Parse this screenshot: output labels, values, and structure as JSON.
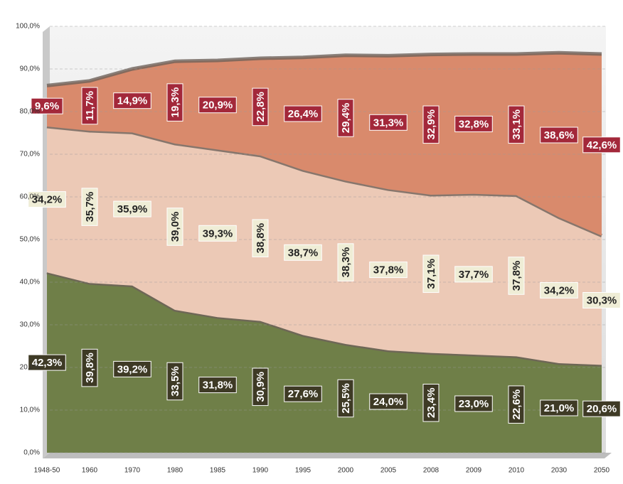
{
  "chart_data": {
    "type": "stacked-area",
    "categories": [
      "1948-50",
      "1960",
      "1970",
      "1980",
      "1985",
      "1990",
      "1995",
      "2000",
      "2005",
      "2008",
      "2009",
      "2010",
      "2030",
      "2050"
    ],
    "series": [
      {
        "color": "#6f7f48",
        "values": [
          42.3,
          39.8,
          39.2,
          33.5,
          31.8,
          30.9,
          27.6,
          25.5,
          24.0,
          23.4,
          23.0,
          22.6,
          21.0,
          20.6
        ],
        "value_labels": [
          "42,3%",
          "39,8%",
          "39,2%",
          "33,5%",
          "31,8%",
          "30,9%",
          "27,6%",
          "25,5%",
          "24,0%",
          "23,4%",
          "23,0%",
          "22,6%",
          "21,0%",
          "20,6%"
        ]
      },
      {
        "color": "#ecc9b6",
        "values": [
          34.2,
          35.7,
          35.9,
          39.0,
          39.3,
          38.8,
          38.7,
          38.3,
          37.8,
          37.1,
          37.7,
          37.8,
          34.2,
          30.3
        ],
        "value_labels": [
          "34,2%",
          "35,7%",
          "35,9%",
          "39,0%",
          "39,3%",
          "38,8%",
          "38,7%",
          "38,3%",
          "37,8%",
          "37,1%",
          "37,7%",
          "37,8%",
          "34,2%",
          "30,3%"
        ]
      },
      {
        "color": "#d98a6c",
        "values": [
          9.6,
          11.7,
          14.9,
          19.3,
          20.9,
          22.8,
          26.4,
          29.4,
          31.3,
          32.9,
          32.8,
          33.1,
          38.6,
          42.6
        ],
        "value_labels": [
          "9,6%",
          "11,7%",
          "14,9%",
          "19,3%",
          "20,9%",
          "22,8%",
          "26,4%",
          "29,4%",
          "31,3%",
          "32,9%",
          "32,8%",
          "33,1%",
          "38,6%",
          "42,6%"
        ]
      }
    ],
    "ylim": [
      0,
      100
    ],
    "yticks": [
      {
        "value": 0,
        "label": "0,0%"
      },
      {
        "value": 10,
        "label": "10,0%"
      },
      {
        "value": 20,
        "label": "20,0%"
      },
      {
        "value": 30,
        "label": "30,0%"
      },
      {
        "value": 40,
        "label": "40,0%"
      },
      {
        "value": 50,
        "label": "50,0%"
      },
      {
        "value": 60,
        "label": "60,0%"
      },
      {
        "value": 70,
        "label": "70,0%"
      },
      {
        "value": 80,
        "label": "80,0%"
      },
      {
        "value": 90,
        "label": "90,0%"
      },
      {
        "value": 100,
        "label": "100,0%"
      }
    ],
    "grid": true
  }
}
